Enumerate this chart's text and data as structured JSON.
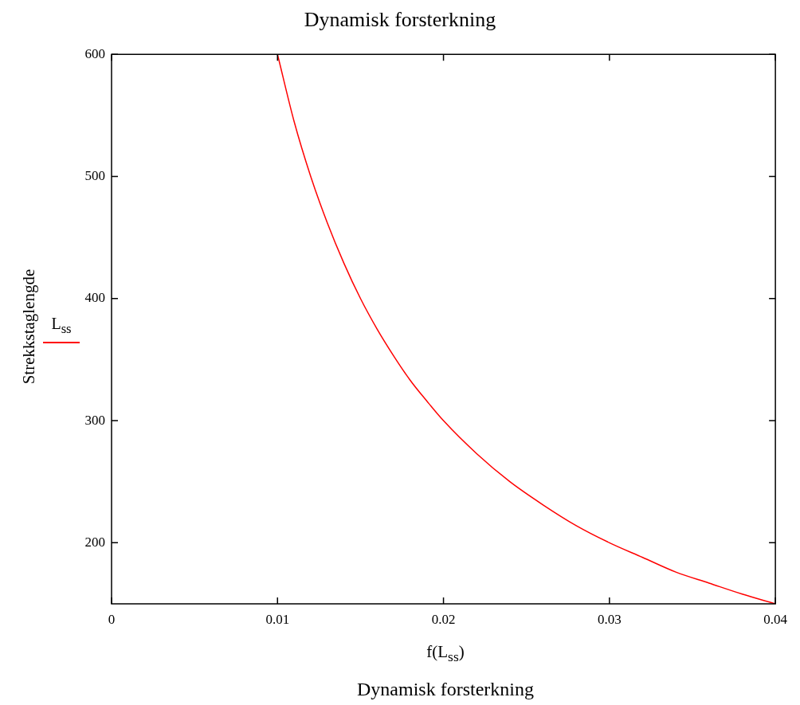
{
  "chart_data": {
    "type": "line",
    "title": "Dynamisk forsterkning",
    "xlabel": "f(L$_{ss}$)",
    "ylabel": "Strekkstaglengde",
    "annotations": [
      "Dynamisk forsterkning"
    ],
    "series": [
      {
        "name": "L$_{ss}$",
        "color": "#ff0000",
        "x": [
          0.01,
          0.011,
          0.012,
          0.013,
          0.014,
          0.015,
          0.016,
          0.017,
          0.018,
          0.019,
          0.02,
          0.022,
          0.024,
          0.026,
          0.028,
          0.03,
          0.032,
          0.034,
          0.036,
          0.038,
          0.04
        ],
        "values": [
          600,
          545,
          500,
          462,
          429,
          400,
          375,
          353,
          333,
          316,
          300,
          273,
          250,
          231,
          214,
          200,
          188,
          176,
          167,
          158,
          150
        ]
      }
    ],
    "xlim": [
      0,
      0.04
    ],
    "xticks": [
      0,
      0.01,
      0.02,
      0.03,
      0.04
    ],
    "ylim": [
      150,
      600
    ],
    "yticks": [
      200,
      300,
      400,
      500,
      600
    ],
    "grid": false,
    "legend": "left",
    "marker": "none",
    "line_style": "solid"
  }
}
